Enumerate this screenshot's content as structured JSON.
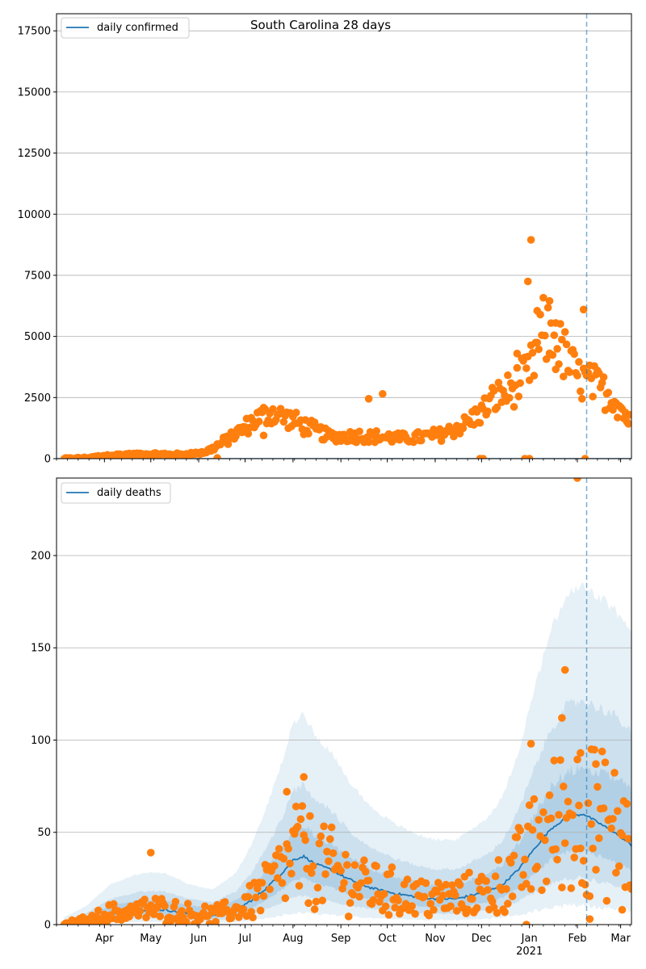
{
  "chart_data": [
    {
      "type": "scatter",
      "title": "South Carolina 28 days",
      "legend": {
        "label": "daily confirmed",
        "placement": "top-left"
      },
      "ylim": [
        0,
        18200
      ],
      "yticks": [
        0,
        2500,
        5000,
        7500,
        10000,
        12500,
        15000,
        17500
      ],
      "ytick_labels": [
        "0",
        "2500",
        "5000",
        "7500",
        "10000",
        "12500",
        "15000",
        "17500"
      ],
      "grid": "horizontal",
      "vline_date": "2021-02-07",
      "line_color": "#1f77b4",
      "point_color": "#ff7f0e",
      "anchors": [
        [
          "2020-03-06",
          0
        ],
        [
          "2020-03-20",
          30
        ],
        [
          "2020-04-05",
          150
        ],
        [
          "2020-04-25",
          180
        ],
        [
          "2020-05-20",
          170
        ],
        [
          "2020-06-05",
          250
        ],
        [
          "2020-06-15",
          600
        ],
        [
          "2020-06-25",
          1000
        ],
        [
          "2020-07-08",
          1600
        ],
        [
          "2020-07-18",
          1900
        ],
        [
          "2020-07-28",
          1650
        ],
        [
          "2020-08-10",
          1300
        ],
        [
          "2020-08-25",
          900
        ],
        [
          "2020-09-10",
          950
        ],
        [
          "2020-09-25",
          900
        ],
        [
          "2020-10-10",
          820
        ],
        [
          "2020-10-25",
          900
        ],
        [
          "2020-11-05",
          1000
        ],
        [
          "2020-11-20",
          1400
        ],
        [
          "2020-12-01",
          1900
        ],
        [
          "2020-12-10",
          2500
        ],
        [
          "2020-12-20",
          2800
        ],
        [
          "2021-01-01",
          3500
        ],
        [
          "2021-01-10",
          5200
        ],
        [
          "2021-01-20",
          4600
        ],
        [
          "2021-02-01",
          3300
        ],
        [
          "2021-02-12",
          3000
        ],
        [
          "2021-02-25",
          2500
        ],
        [
          "2021-03-07",
          1500
        ]
      ],
      "outliers": [
        [
          "2020-07-13",
          950
        ],
        [
          "2020-09-19",
          2450
        ],
        [
          "2020-09-28",
          2650
        ],
        [
          "2020-12-24",
          4300
        ],
        [
          "2020-12-31",
          7250
        ],
        [
          "2021-01-02",
          8950
        ],
        [
          "2021-01-06",
          6050
        ],
        [
          "2021-01-14",
          6450
        ],
        [
          "2021-01-18",
          5550
        ],
        [
          "2021-02-05",
          6100
        ],
        [
          "2020-12-02",
          0
        ],
        [
          "2020-12-29",
          0
        ],
        [
          "2021-01-01",
          0
        ],
        [
          "2021-02-06",
          0
        ],
        [
          "2020-06-13",
          30
        ],
        [
          "2020-11-30",
          0
        ]
      ]
    },
    {
      "type": "line",
      "legend": {
        "label": "daily deaths",
        "placement": "top-left"
      },
      "ylim": [
        0,
        242
      ],
      "yticks": [
        0,
        50,
        100,
        150,
        200
      ],
      "ytick_labels": [
        "0",
        "50",
        "100",
        "150",
        "200"
      ],
      "grid": "horizontal",
      "vline_date": "2021-02-07",
      "xlim": [
        "2020-03-01",
        "2021-03-08"
      ],
      "xticks": [
        {
          "date": "2020-04-01",
          "label": "Apr"
        },
        {
          "date": "2020-05-01",
          "label": "May"
        },
        {
          "date": "2020-06-01",
          "label": "Jun"
        },
        {
          "date": "2020-07-01",
          "label": "Jul"
        },
        {
          "date": "2020-08-01",
          "label": "Aug"
        },
        {
          "date": "2020-09-01",
          "label": "Sep"
        },
        {
          "date": "2020-10-01",
          "label": "Oct"
        },
        {
          "date": "2020-11-01",
          "label": "Nov"
        },
        {
          "date": "2020-12-01",
          "label": "Dec"
        },
        {
          "date": "2021-01-01",
          "label": "Jan"
        },
        {
          "date": "2021-02-01",
          "label": "Feb"
        },
        {
          "date": "2021-03-01",
          "label": "Mar"
        }
      ],
      "year_label": {
        "date": "2021-01-01",
        "label": "2021"
      },
      "line_color": "#1f77b4",
      "point_color": "#ff7f0e",
      "band_color": "#1f77b4",
      "mean_line": [
        [
          "2020-03-06",
          0
        ],
        [
          "2020-03-20",
          2
        ],
        [
          "2020-04-05",
          6
        ],
        [
          "2020-04-25",
          8
        ],
        [
          "2020-05-10",
          8
        ],
        [
          "2020-05-25",
          6
        ],
        [
          "2020-06-10",
          5
        ],
        [
          "2020-06-25",
          8
        ],
        [
          "2020-07-05",
          13
        ],
        [
          "2020-07-15",
          20
        ],
        [
          "2020-07-25",
          28
        ],
        [
          "2020-08-01",
          35
        ],
        [
          "2020-08-08",
          37
        ],
        [
          "2020-08-15",
          33
        ],
        [
          "2020-08-25",
          30
        ],
        [
          "2020-09-05",
          25
        ],
        [
          "2020-09-20",
          20
        ],
        [
          "2020-10-05",
          17
        ],
        [
          "2020-10-20",
          15
        ],
        [
          "2020-11-01",
          14
        ],
        [
          "2020-11-15",
          14
        ],
        [
          "2020-11-25",
          16
        ],
        [
          "2020-12-05",
          18
        ],
        [
          "2020-12-15",
          22
        ],
        [
          "2020-12-25",
          30
        ],
        [
          "2021-01-05",
          42
        ],
        [
          "2021-01-15",
          52
        ],
        [
          "2021-01-25",
          58
        ],
        [
          "2021-02-05",
          60
        ],
        [
          "2021-02-15",
          55
        ],
        [
          "2021-02-25",
          50
        ],
        [
          "2021-03-08",
          43
        ]
      ],
      "bands": [
        {
          "level": "outer",
          "lower": 0.2,
          "upper": 3.0
        },
        {
          "level": "middle",
          "lower": 0.45,
          "upper": 2.0
        },
        {
          "level": "inner",
          "lower": 0.7,
          "upper": 1.4
        }
      ],
      "outliers": [
        [
          "2020-05-01",
          39
        ],
        [
          "2020-07-28",
          72
        ],
        [
          "2020-08-08",
          80
        ],
        [
          "2020-08-03",
          64
        ],
        [
          "2021-01-22",
          112
        ],
        [
          "2021-01-24",
          138
        ],
        [
          "2021-01-02",
          98
        ],
        [
          "2021-02-03",
          93
        ],
        [
          "2021-02-10",
          95
        ],
        [
          "2021-02-13",
          87
        ],
        [
          "2021-02-01",
          242
        ],
        [
          "2021-02-09",
          3
        ],
        [
          "2020-12-30",
          0
        ],
        [
          "2021-03-02",
          8
        ]
      ]
    }
  ]
}
